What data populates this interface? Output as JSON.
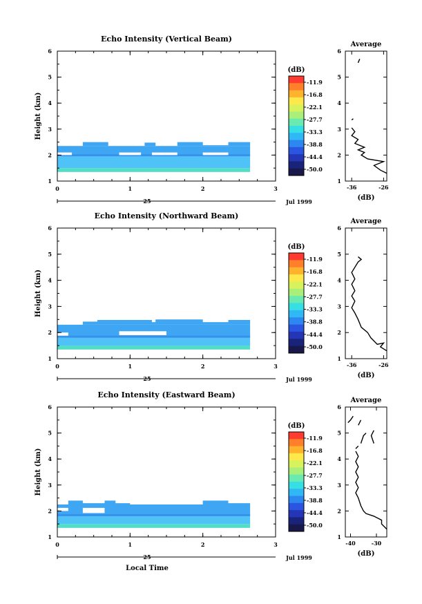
{
  "color_scale": {
    "unit_label": "(dB)",
    "levels": [
      "-11.9",
      "-16.8",
      "-22.1",
      "-27.7",
      "-33.3",
      "-38.8",
      "-44.4",
      "-50.0"
    ],
    "colors": [
      "#ff3b2f",
      "#ff7f2a",
      "#ffb22c",
      "#ffe84a",
      "#d8f25c",
      "#a9ef7a",
      "#69eab0",
      "#35dfe3",
      "#2fb8f5",
      "#2d87f0",
      "#2a55e0",
      "#2436b5",
      "#1a237a",
      "#18184a"
    ]
  },
  "fill_colors": {
    "low": "#52ddc6",
    "mid": "#4fc3f7",
    "high": "#3fa6f4",
    "dark": "#2f7ee6"
  },
  "chart_data": [
    {
      "type": "heatmap",
      "title": "Echo Intensity (Vertical Beam)",
      "ylabel": "Height (km)",
      "xlabel": "",
      "xlim": [
        0,
        3
      ],
      "ylim": [
        1,
        6
      ],
      "x_ticks": [
        "0",
        "1",
        "2",
        "3"
      ],
      "y_ticks": [
        "1",
        "2",
        "3",
        "4",
        "5",
        "6"
      ],
      "date_label": "25",
      "month_label": "Jul 1999",
      "bands": [
        {
          "level": "low",
          "x": [
            0,
            2.65
          ],
          "y": [
            1.35,
            1.5
          ]
        },
        {
          "level": "mid",
          "x": [
            0,
            2.65
          ],
          "y": [
            1.5,
            1.95
          ]
        },
        {
          "level": "high",
          "x": [
            0,
            2.65
          ],
          "y": [
            1.95,
            2.35
          ]
        }
      ],
      "gaps": [
        {
          "x": [
            0,
            0.2
          ],
          "y": [
            2.0,
            2.1
          ]
        },
        {
          "x": [
            0.85,
            1.15
          ],
          "y": [
            2.0,
            2.1
          ]
        },
        {
          "x": [
            1.3,
            1.65
          ],
          "y": [
            2.0,
            2.1
          ]
        },
        {
          "x": [
            2.0,
            2.35
          ],
          "y": [
            2.0,
            2.1
          ]
        }
      ],
      "top_edge": [
        [
          0,
          2.35
        ],
        [
          0.35,
          2.35
        ],
        [
          0.35,
          2.5
        ],
        [
          0.7,
          2.5
        ],
        [
          0.7,
          2.35
        ],
        [
          1.2,
          2.35
        ],
        [
          1.2,
          2.48
        ],
        [
          1.35,
          2.48
        ],
        [
          1.35,
          2.35
        ],
        [
          1.65,
          2.35
        ],
        [
          1.65,
          2.5
        ],
        [
          2.0,
          2.5
        ],
        [
          2.0,
          2.38
        ],
        [
          2.35,
          2.38
        ],
        [
          2.35,
          2.5
        ],
        [
          2.65,
          2.5
        ]
      ],
      "average": {
        "title": "Average",
        "xlabel": "(dB)",
        "xlim": [
          -38,
          -25
        ],
        "x_ticks": [
          "-36",
          "-26"
        ],
        "x_tick_values": [
          -36,
          -26
        ],
        "ylim": [
          1,
          6
        ],
        "y_ticks": [
          "1",
          "2",
          "3",
          "4",
          "5",
          "6"
        ],
        "segments": [
          [
            [
              -25,
              1.3
            ],
            [
              -27,
              1.42
            ],
            [
              -29,
              1.6
            ],
            [
              -26,
              1.75
            ],
            [
              -31,
              1.85
            ],
            [
              -33,
              2.0
            ],
            [
              -32,
              2.1
            ],
            [
              -34,
              2.2
            ],
            [
              -32,
              2.3
            ],
            [
              -35,
              2.45
            ],
            [
              -34,
              2.6
            ],
            [
              -36,
              2.75
            ],
            [
              -35,
              2.9
            ],
            [
              -36,
              3.05
            ]
          ],
          [
            [
              -36,
              3.35
            ],
            [
              -35.5,
              3.4
            ]
          ],
          [
            [
              -34,
              5.55
            ],
            [
              -33.5,
              5.7
            ]
          ]
        ]
      }
    },
    {
      "type": "heatmap",
      "title": "Echo Intensity (Northward Beam)",
      "ylabel": "Height (km)",
      "xlabel": "",
      "xlim": [
        0,
        3
      ],
      "ylim": [
        1,
        6
      ],
      "x_ticks": [
        "0",
        "1",
        "2",
        "3"
      ],
      "y_ticks": [
        "1",
        "2",
        "3",
        "4",
        "5",
        "6"
      ],
      "date_label": "25",
      "month_label": "Jul 1999",
      "bands": [
        {
          "level": "low",
          "x": [
            0,
            2.65
          ],
          "y": [
            1.35,
            1.5
          ]
        },
        {
          "level": "mid",
          "x": [
            0,
            2.65
          ],
          "y": [
            1.5,
            1.8
          ]
        },
        {
          "level": "high",
          "x": [
            0,
            2.65
          ],
          "y": [
            1.8,
            2.3
          ]
        }
      ],
      "gaps": [
        {
          "x": [
            0,
            0.15
          ],
          "y": [
            1.88,
            2.0
          ]
        },
        {
          "x": [
            0.85,
            1.5
          ],
          "y": [
            1.9,
            2.05
          ]
        }
      ],
      "top_edge": [
        [
          0,
          2.3
        ],
        [
          0.35,
          2.3
        ],
        [
          0.35,
          2.42
        ],
        [
          0.55,
          2.42
        ],
        [
          0.55,
          2.48
        ],
        [
          1.3,
          2.48
        ],
        [
          1.3,
          2.4
        ],
        [
          1.35,
          2.4
        ],
        [
          1.35,
          2.5
        ],
        [
          2.0,
          2.5
        ],
        [
          2.0,
          2.4
        ],
        [
          2.35,
          2.4
        ],
        [
          2.35,
          2.48
        ],
        [
          2.65,
          2.48
        ]
      ],
      "average": {
        "title": "Average",
        "xlabel": "(dB)",
        "xlim": [
          -38,
          -25
        ],
        "x_ticks": [
          "-36",
          "-26"
        ],
        "x_tick_values": [
          -36,
          -26
        ],
        "ylim": [
          1,
          6
        ],
        "y_ticks": [
          "1",
          "2",
          "3",
          "4",
          "5",
          "6"
        ],
        "segments": [
          [
            [
              -25,
              1.3
            ],
            [
              -27,
              1.45
            ],
            [
              -26,
              1.6
            ],
            [
              -28,
              1.55
            ],
            [
              -30,
              1.8
            ],
            [
              -31,
              2.0
            ],
            [
              -33,
              2.2
            ],
            [
              -34,
              2.5
            ],
            [
              -35,
              2.75
            ],
            [
              -36,
              2.95
            ],
            [
              -35,
              3.2
            ],
            [
              -36,
              3.4
            ],
            [
              -35,
              3.6
            ],
            [
              -36,
              3.85
            ],
            [
              -35,
              4.05
            ],
            [
              -36,
              4.3
            ],
            [
              -35,
              4.5
            ],
            [
              -34,
              4.7
            ],
            [
              -33,
              4.8
            ],
            [
              -34,
              4.9
            ]
          ]
        ]
      }
    },
    {
      "type": "heatmap",
      "title": "Echo Intensity (Eastward Beam)",
      "ylabel": "Height (km)",
      "xlabel": "Local Time",
      "xlim": [
        0,
        3
      ],
      "ylim": [
        1,
        6
      ],
      "x_ticks": [
        "0",
        "1",
        "2",
        "3"
      ],
      "y_ticks": [
        "1",
        "2",
        "3",
        "4",
        "5",
        "6"
      ],
      "date_label": "25",
      "month_label": "Jul 1999",
      "bands": [
        {
          "level": "low",
          "x": [
            0,
            2.65
          ],
          "y": [
            1.35,
            1.5
          ]
        },
        {
          "level": "mid",
          "x": [
            0,
            2.65
          ],
          "y": [
            1.5,
            1.8
          ]
        },
        {
          "level": "high",
          "x": [
            0,
            2.65
          ],
          "y": [
            1.8,
            2.25
          ]
        }
      ],
      "gaps": [
        {
          "x": [
            0,
            0.15
          ],
          "y": [
            2.0,
            2.12
          ]
        },
        {
          "x": [
            0.35,
            0.65
          ],
          "y": [
            1.92,
            2.12
          ]
        }
      ],
      "top_edge": [
        [
          0,
          2.25
        ],
        [
          0.15,
          2.25
        ],
        [
          0.15,
          2.4
        ],
        [
          0.35,
          2.4
        ],
        [
          0.35,
          2.3
        ],
        [
          0.65,
          2.3
        ],
        [
          0.65,
          2.4
        ],
        [
          0.8,
          2.4
        ],
        [
          0.8,
          2.3
        ],
        [
          1.0,
          2.3
        ],
        [
          1.0,
          2.25
        ],
        [
          2.0,
          2.25
        ],
        [
          2.0,
          2.4
        ],
        [
          2.35,
          2.4
        ],
        [
          2.35,
          2.3
        ],
        [
          2.65,
          2.3
        ]
      ],
      "average": {
        "title": "Average",
        "xlabel": "(dB)",
        "xlim": [
          -42,
          -26
        ],
        "x_ticks": [
          "-40",
          "-30"
        ],
        "x_tick_values": [
          -40,
          -30
        ],
        "ylim": [
          1,
          6
        ],
        "y_ticks": [
          "1",
          "2",
          "3",
          "4",
          "5",
          "6"
        ],
        "segments": [
          [
            [
              -26,
              1.3
            ],
            [
              -28,
              1.5
            ],
            [
              -28,
              1.65
            ],
            [
              -31,
              1.8
            ],
            [
              -34,
              1.9
            ],
            [
              -35,
              2.0
            ],
            [
              -36,
              2.2
            ],
            [
              -37,
              2.5
            ],
            [
              -38,
              2.7
            ],
            [
              -37,
              2.9
            ],
            [
              -38,
              3.1
            ],
            [
              -37,
              3.3
            ],
            [
              -38,
              3.5
            ],
            [
              -37,
              3.7
            ],
            [
              -38,
              3.9
            ],
            [
              -37,
              4.1
            ],
            [
              -38,
              4.3
            ]
          ],
          [
            [
              -38,
              4.4
            ],
            [
              -37,
              4.5
            ]
          ],
          [
            [
              -36,
              4.6
            ],
            [
              -35,
              4.9
            ],
            [
              -34,
              5.0
            ]
          ],
          [
            [
              -31,
              4.6
            ],
            [
              -32,
              4.9
            ],
            [
              -31,
              5.1
            ]
          ],
          [
            [
              -41,
              5.4
            ],
            [
              -40,
              5.5
            ],
            [
              -39,
              5.65
            ]
          ],
          [
            [
              -37,
              5.3
            ],
            [
              -36,
              5.5
            ]
          ]
        ]
      }
    }
  ]
}
